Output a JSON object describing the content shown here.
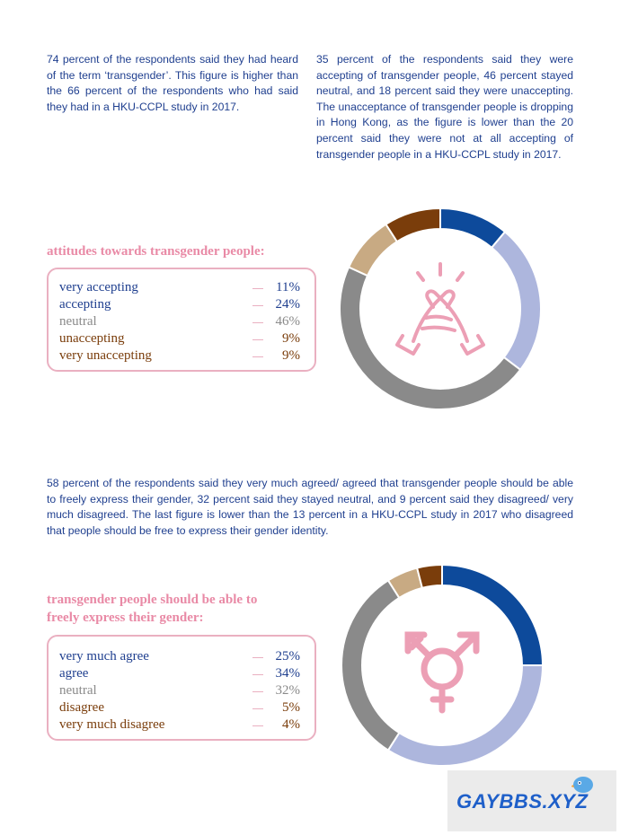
{
  "paragraphs": {
    "p1": "74 percent of the respondents said they had heard of the term ‘transgender’. This figure is higher than the 66 percent of the respondents who had said they had in a HKU-CCPL study in 2017.",
    "p2": "35 percent of the respondents said they were accepting of transgender people, 46 percent stayed neutral, and 18 percent said they were unaccepting. The unacceptance of transgender people is dropping in Hong Kong, as the figure is lower than the 20 percent said they were not at all accepting of transgender people in a HKU-CCPL study in 2017.",
    "p3": "58 percent of the respondents said they very much agreed/ agreed that transgender people should be able to freely express their gender, 32 percent said they stayed neutral, and 9 percent said they disagreed/ very much disagreed. The last figure is lower than the 13 percent in a HKU-CCPL study in 2017 who disagreed that people should be free to express their gender identity."
  },
  "section1": {
    "heading": "attitudes towards transgender people:",
    "items": [
      {
        "label": "very accepting",
        "value": "11%",
        "color": "#1f3f8f"
      },
      {
        "label": "accepting",
        "value": "24%",
        "color": "#1f3f8f"
      },
      {
        "label": "neutral",
        "value": "46%",
        "color": "#8a8a8a"
      },
      {
        "label": "unaccepting",
        "value": "9%",
        "color": "#7a3d0b"
      },
      {
        "label": "very unaccepting",
        "value": "9%",
        "color": "#7a3d0b"
      }
    ],
    "icon": "handshake-icon"
  },
  "section2": {
    "heading_line1": "transgender people should be able to",
    "heading_line2": "freely express their gender:",
    "items": [
      {
        "label": "very much agree",
        "value": "25%",
        "color": "#1f3f8f"
      },
      {
        "label": "agree",
        "value": "34%",
        "color": "#1f3f8f"
      },
      {
        "label": "neutral",
        "value": "32%",
        "color": "#8a8a8a"
      },
      {
        "label": "disagree",
        "value": "5%",
        "color": "#7a3d0b"
      },
      {
        "label": "very much disagree",
        "value": "4%",
        "color": "#7a3d0b"
      }
    ],
    "icon": "transgender-symbol-icon"
  },
  "chart_data": [
    {
      "type": "pie",
      "title": "attitudes towards transgender people",
      "categories": [
        "very accepting",
        "accepting",
        "neutral",
        "unaccepting",
        "very unaccepting"
      ],
      "values": [
        11,
        24,
        46,
        9,
        9
      ],
      "colors": [
        "#0d4a9b",
        "#adb6dd",
        "#8a8a8a",
        "#c8aa83",
        "#7a3d0b"
      ]
    },
    {
      "type": "pie",
      "title": "transgender people should be able to freely express their gender",
      "categories": [
        "very much agree",
        "agree",
        "neutral",
        "disagree",
        "very much disagree"
      ],
      "values": [
        25,
        34,
        32,
        5,
        4
      ],
      "colors": [
        "#0d4a9b",
        "#adb6dd",
        "#8a8a8a",
        "#c8aa83",
        "#7a3d0b"
      ]
    }
  ],
  "watermark": {
    "text": "GAYBBS.XYZ"
  }
}
